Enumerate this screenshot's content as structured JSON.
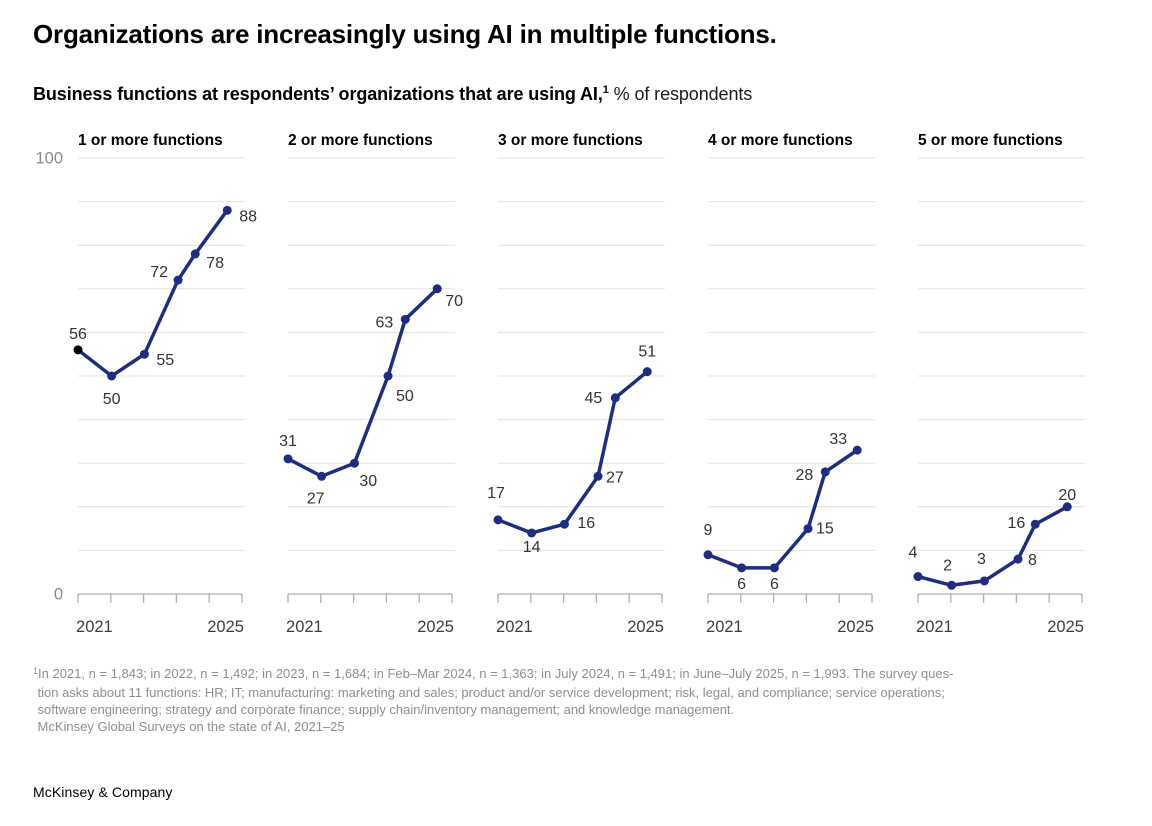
{
  "page": {
    "title": "Organizations are increasingly using AI in multiple functions.",
    "subtitle_bold": "Business functions at respondents’ organizations that are using AI,",
    "subtitle_sup": "1",
    "subtitle_rest": " % of respondents",
    "footer": "McKinsey & Company"
  },
  "footnote": {
    "sup": "1",
    "lines": [
      "In 2021, n = 1,843; in 2022, n = 1,492; in 2023, n = 1,684; in Feb–Mar 2024, n = 1,363; in July 2024, n = 1,491; in June–July 2025, n = 1,993. The survey ques-",
      "tion asks about 11 functions: HR; IT; manufacturing: marketing and sales; product and/or service development; risk, legal, and compliance; service operations;",
      "software engineering; strategy and corporate finance; supply chain/inventory management; and knowledge management.",
      "McKinsey Global Surveys on the state of AI, 2021–25"
    ]
  },
  "axis": {
    "y_max_label": "100",
    "y_min_label": "0",
    "x_first_label": "2021",
    "x_last_label": "2025",
    "y_min": 0,
    "y_max": 100,
    "gridline_step": 10
  },
  "colors": {
    "line": "#1e2d81",
    "highlight_point": "#000000",
    "grid": "#e2e2e2",
    "axis": "#b0b0b0",
    "y_axis_text": "#8a8a8a",
    "x_axis_text": "#3d3d3d",
    "value_label_text": "#333333",
    "panel_title_text": "#000000"
  },
  "chart_data": [
    {
      "type": "line",
      "title": "1 or more functions",
      "categories": [
        "2021",
        "2022",
        "2023",
        "Feb–Mar 2024",
        "July 2024",
        "June–July 2025"
      ],
      "values": [
        56,
        50,
        55,
        72,
        78,
        88
      ],
      "ylim": [
        0,
        100
      ],
      "grid": true,
      "first_point_highlighted": true,
      "label_offsets": [
        [
          0,
          -11,
          "middle"
        ],
        [
          0,
          28,
          "middle"
        ],
        [
          12,
          11,
          "start"
        ],
        [
          -10,
          -3,
          "end"
        ],
        [
          11,
          14,
          "start"
        ],
        [
          12,
          11,
          "start"
        ]
      ]
    },
    {
      "type": "line",
      "title": "2 or more functions",
      "categories": [
        "2021",
        "2022",
        "2023",
        "Feb–Mar 2024",
        "July 2024",
        "June–July 2025"
      ],
      "values": [
        31,
        27,
        30,
        50,
        63,
        70
      ],
      "ylim": [
        0,
        100
      ],
      "grid": true,
      "first_point_highlighted": false,
      "label_offsets": [
        [
          0,
          -13,
          "middle"
        ],
        [
          -6,
          27,
          "middle"
        ],
        [
          5,
          23,
          "start"
        ],
        [
          8,
          25,
          "start"
        ],
        [
          -12,
          8,
          "end"
        ],
        [
          8,
          17,
          "start"
        ]
      ]
    },
    {
      "type": "line",
      "title": "3 or more functions",
      "categories": [
        "2021",
        "2022",
        "2023",
        "Feb–Mar 2024",
        "July 2024",
        "June–July 2025"
      ],
      "values": [
        17,
        14,
        16,
        27,
        45,
        51
      ],
      "ylim": [
        0,
        100
      ],
      "grid": true,
      "first_point_highlighted": false,
      "label_offsets": [
        [
          -2,
          -22,
          "middle"
        ],
        [
          0,
          19,
          "middle"
        ],
        [
          13,
          4,
          "start"
        ],
        [
          8,
          6,
          "start"
        ],
        [
          -13,
          5,
          "end"
        ],
        [
          0,
          -15,
          "middle"
        ]
      ]
    },
    {
      "type": "line",
      "title": "4 or more functions",
      "categories": [
        "2021",
        "2022",
        "2023",
        "Feb–Mar 2024",
        "July 2024",
        "June–July 2025"
      ],
      "values": [
        9,
        6,
        6,
        15,
        28,
        33
      ],
      "ylim": [
        0,
        100
      ],
      "grid": true,
      "first_point_highlighted": false,
      "label_offsets": [
        [
          0,
          -20,
          "middle"
        ],
        [
          0,
          21,
          "middle"
        ],
        [
          0,
          21,
          "middle"
        ],
        [
          8,
          5,
          "start"
        ],
        [
          -12,
          8,
          "end"
        ],
        [
          -19,
          -6,
          "middle"
        ]
      ]
    },
    {
      "type": "line",
      "title": "5 or more functions",
      "categories": [
        "2021",
        "2022",
        "2023",
        "Feb–Mar 2024",
        "July 2024",
        "June–July 2025"
      ],
      "values": [
        4,
        2,
        3,
        8,
        16,
        20
      ],
      "ylim": [
        0,
        100
      ],
      "grid": true,
      "first_point_highlighted": false,
      "label_offsets": [
        [
          -5,
          -19,
          "middle"
        ],
        [
          -4,
          -15,
          "middle"
        ],
        [
          -3,
          -17,
          "middle"
        ],
        [
          10,
          6,
          "start"
        ],
        [
          -10,
          4,
          "end"
        ],
        [
          0,
          -7,
          "middle"
        ]
      ]
    }
  ]
}
